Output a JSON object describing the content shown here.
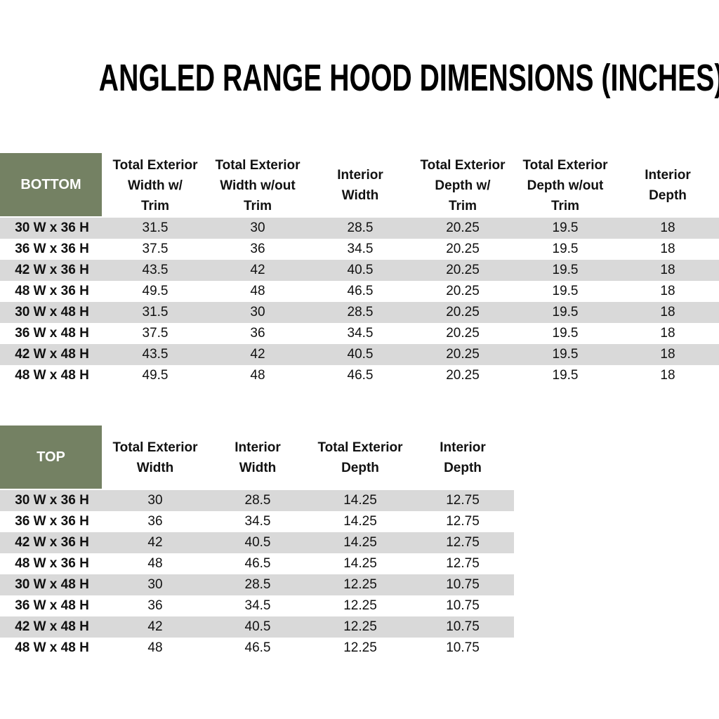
{
  "title": "ANGLED RANGE HOOD DIMENSIONS (INCHES)",
  "colors": {
    "header_green": "#748163",
    "row_stripe_gray": "#d9d9d9",
    "row_white": "#ffffff",
    "header_label_text": "#ffffff",
    "body_text": "#111111"
  },
  "bottom_table": {
    "label": "BOTTOM",
    "columns": [
      "Total Exterior\nWidth w/\nTrim",
      "Total Exterior\nWidth w/out\nTrim",
      "Interior\nWidth",
      "Total Exterior\nDepth w/\nTrim",
      "Total Exterior\nDepth w/out\nTrim",
      "Interior\nDepth"
    ],
    "rows": [
      {
        "label": "30 W x 36 H",
        "values": [
          "31.5",
          "30",
          "28.5",
          "20.25",
          "19.5",
          "18"
        ]
      },
      {
        "label": "36 W x 36 H",
        "values": [
          "37.5",
          "36",
          "34.5",
          "20.25",
          "19.5",
          "18"
        ]
      },
      {
        "label": "42 W x 36 H",
        "values": [
          "43.5",
          "42",
          "40.5",
          "20.25",
          "19.5",
          "18"
        ]
      },
      {
        "label": "48 W x 36 H",
        "values": [
          "49.5",
          "48",
          "46.5",
          "20.25",
          "19.5",
          "18"
        ]
      },
      {
        "label": "30 W x 48 H",
        "values": [
          "31.5",
          "30",
          "28.5",
          "20.25",
          "19.5",
          "18"
        ]
      },
      {
        "label": "36 W x 48 H",
        "values": [
          "37.5",
          "36",
          "34.5",
          "20.25",
          "19.5",
          "18"
        ]
      },
      {
        "label": "42 W x 48 H",
        "values": [
          "43.5",
          "42",
          "40.5",
          "20.25",
          "19.5",
          "18"
        ]
      },
      {
        "label": "48 W x 48 H",
        "values": [
          "49.5",
          "48",
          "46.5",
          "20.25",
          "19.5",
          "18"
        ]
      }
    ]
  },
  "top_table": {
    "label": "TOP",
    "columns": [
      "Total Exterior\nWidth",
      "Interior\nWidth",
      "Total Exterior\nDepth",
      "Interior\nDepth"
    ],
    "rows": [
      {
        "label": "30 W x 36 H",
        "values": [
          "30",
          "28.5",
          "14.25",
          "12.75"
        ]
      },
      {
        "label": "36 W x 36 H",
        "values": [
          "36",
          "34.5",
          "14.25",
          "12.75"
        ]
      },
      {
        "label": "42 W x 36 H",
        "values": [
          "42",
          "40.5",
          "14.25",
          "12.75"
        ]
      },
      {
        "label": "48 W x 36 H",
        "values": [
          "48",
          "46.5",
          "14.25",
          "12.75"
        ]
      },
      {
        "label": "30 W x 48 H",
        "values": [
          "30",
          "28.5",
          "12.25",
          "10.75"
        ]
      },
      {
        "label": "36 W x 48 H",
        "values": [
          "36",
          "34.5",
          "12.25",
          "10.75"
        ]
      },
      {
        "label": "42 W x 48 H",
        "values": [
          "42",
          "40.5",
          "12.25",
          "10.75"
        ]
      },
      {
        "label": "48 W x 48 H",
        "values": [
          "48",
          "46.5",
          "12.25",
          "10.75"
        ]
      }
    ]
  }
}
